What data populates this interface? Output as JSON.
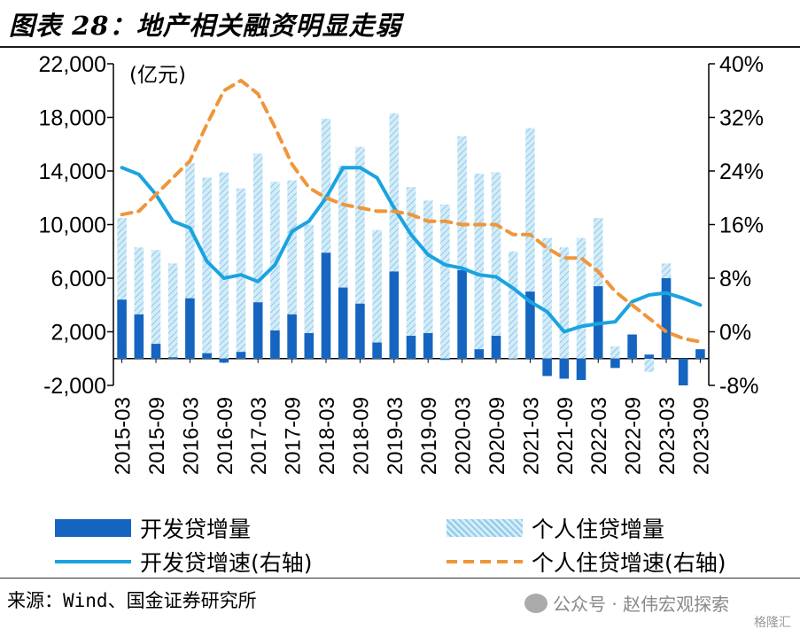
{
  "title": "图表 28：地产相关融资明显走弱",
  "source": "来源：Wind、国金证券研究所",
  "watermark": {
    "text": "公众号 · 赵伟宏观探索",
    "sub": "格隆汇"
  },
  "chart_data": {
    "type": "bar",
    "unit_label": "(亿元)",
    "categories": [
      "2015-03",
      "2015-06",
      "2015-09",
      "2015-12",
      "2016-03",
      "2016-06",
      "2016-09",
      "2016-12",
      "2017-03",
      "2017-06",
      "2017-09",
      "2017-12",
      "2018-03",
      "2018-06",
      "2018-09",
      "2018-12",
      "2019-03",
      "2019-06",
      "2019-09",
      "2019-12",
      "2020-03",
      "2020-06",
      "2020-09",
      "2020-12",
      "2021-03",
      "2021-06",
      "2021-09",
      "2021-12",
      "2022-03",
      "2022-06",
      "2022-09",
      "2022-12",
      "2023-03",
      "2023-06",
      "2023-09"
    ],
    "xtick_labels": [
      "2015-03",
      "2015-09",
      "2016-03",
      "2016-09",
      "2017-03",
      "2017-09",
      "2018-03",
      "2018-09",
      "2019-03",
      "2019-09",
      "2020-03",
      "2020-09",
      "2021-03",
      "2021-09",
      "2022-03",
      "2022-09",
      "2023-03",
      "2023-09"
    ],
    "y_left": {
      "min": -2000,
      "max": 22000,
      "ticks": [
        -2000,
        2000,
        6000,
        10000,
        14000,
        18000,
        22000
      ],
      "tick_labels": [
        "-2,000",
        "2,000",
        "6,000",
        "10,000",
        "14,000",
        "18,000",
        "22,000"
      ]
    },
    "y_right": {
      "min": -8,
      "max": 40,
      "ticks": [
        -8,
        0,
        8,
        16,
        24,
        32,
        40
      ],
      "tick_labels": [
        "-8%",
        "0%",
        "8%",
        "16%",
        "24%",
        "32%",
        "40%"
      ]
    },
    "series": [
      {
        "name": "开发贷增量",
        "kind": "bar",
        "axis": "left",
        "color": "#1565c0",
        "values": [
          4400,
          3300,
          1100,
          100,
          4500,
          400,
          -300,
          500,
          4200,
          2100,
          3300,
          1900,
          7900,
          5300,
          4100,
          1200,
          6500,
          1700,
          1900,
          -100,
          6600,
          700,
          1700,
          0,
          5000,
          -1300,
          -1500,
          -1600,
          5400,
          -700,
          1800,
          300,
          6000,
          -2000,
          700
        ]
      },
      {
        "name": "个人住贷增量",
        "kind": "bar",
        "axis": "left",
        "color": "#9fd4ee",
        "values": [
          10500,
          8300,
          8100,
          7100,
          14600,
          13500,
          13900,
          12700,
          15300,
          13200,
          13300,
          10000,
          17900,
          14400,
          15800,
          9600,
          18300,
          12800,
          11800,
          11500,
          16600,
          13800,
          13900,
          8000,
          17200,
          9000,
          8300,
          9000,
          10500,
          900,
          1000,
          -1000,
          7100,
          -2000,
          500
        ]
      },
      {
        "name": "开发贷增速(右轴)",
        "kind": "line",
        "axis": "right",
        "color": "#1aa3e0",
        "values": [
          24.5,
          23.5,
          20.5,
          16.5,
          15.5,
          10.5,
          8,
          8.5,
          7.5,
          10,
          15,
          16.5,
          20,
          24.5,
          24.5,
          23,
          18.5,
          14.5,
          11.5,
          10,
          9.5,
          8.5,
          8.2,
          6.5,
          4.5,
          3,
          0,
          0.8,
          1.2,
          1.5,
          4.5,
          5.5,
          5.8,
          5,
          4
        ]
      },
      {
        "name": "个人住贷增速(右轴)",
        "kind": "line",
        "axis": "right",
        "color": "#f0953a",
        "values": [
          17.5,
          18,
          20.5,
          23,
          25.5,
          31,
          36,
          37.5,
          35.5,
          30.5,
          25,
          21.5,
          20,
          19,
          18.5,
          18,
          18,
          17.5,
          16.5,
          16.5,
          16,
          16,
          16,
          14.5,
          14.5,
          12.5,
          11,
          11,
          9,
          6,
          4,
          2,
          0,
          -1,
          -1.5
        ]
      }
    ]
  }
}
